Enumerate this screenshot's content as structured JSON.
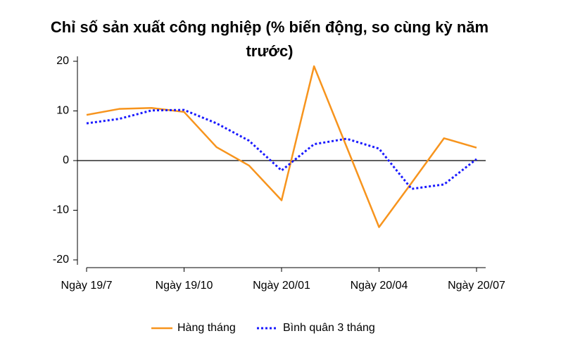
{
  "chart_data": {
    "type": "line",
    "title": "Chỉ số sản xuất công nghiệp (% biến động, so cùng kỳ năm trước)",
    "categories": [
      "Ngày 19/7",
      null,
      null,
      "Ngày 19/10",
      null,
      null,
      "Ngày 20/01",
      null,
      null,
      "Ngày 20/04",
      null,
      null,
      "Ngày 20/07"
    ],
    "series": [
      {
        "name": "Hàng tháng",
        "color": "#f7941d",
        "dash": false,
        "values": [
          9.2,
          10.4,
          10.6,
          9.8,
          2.7,
          -1.0,
          -8.0,
          19.0,
          2.8,
          -13.4,
          -4.5,
          4.5,
          2.6
        ]
      },
      {
        "name": "Bình quân 3 tháng",
        "color": "#1a1aff",
        "dash": true,
        "values": [
          7.5,
          8.4,
          10.1,
          10.2,
          7.5,
          4.0,
          -2.0,
          3.3,
          4.4,
          2.4,
          -5.7,
          -4.8,
          0.3
        ]
      }
    ],
    "ylim": [
      -20,
      20
    ],
    "yticks": [
      -20,
      -10,
      0,
      10,
      20
    ],
    "grid": false,
    "legend": "bottom"
  }
}
